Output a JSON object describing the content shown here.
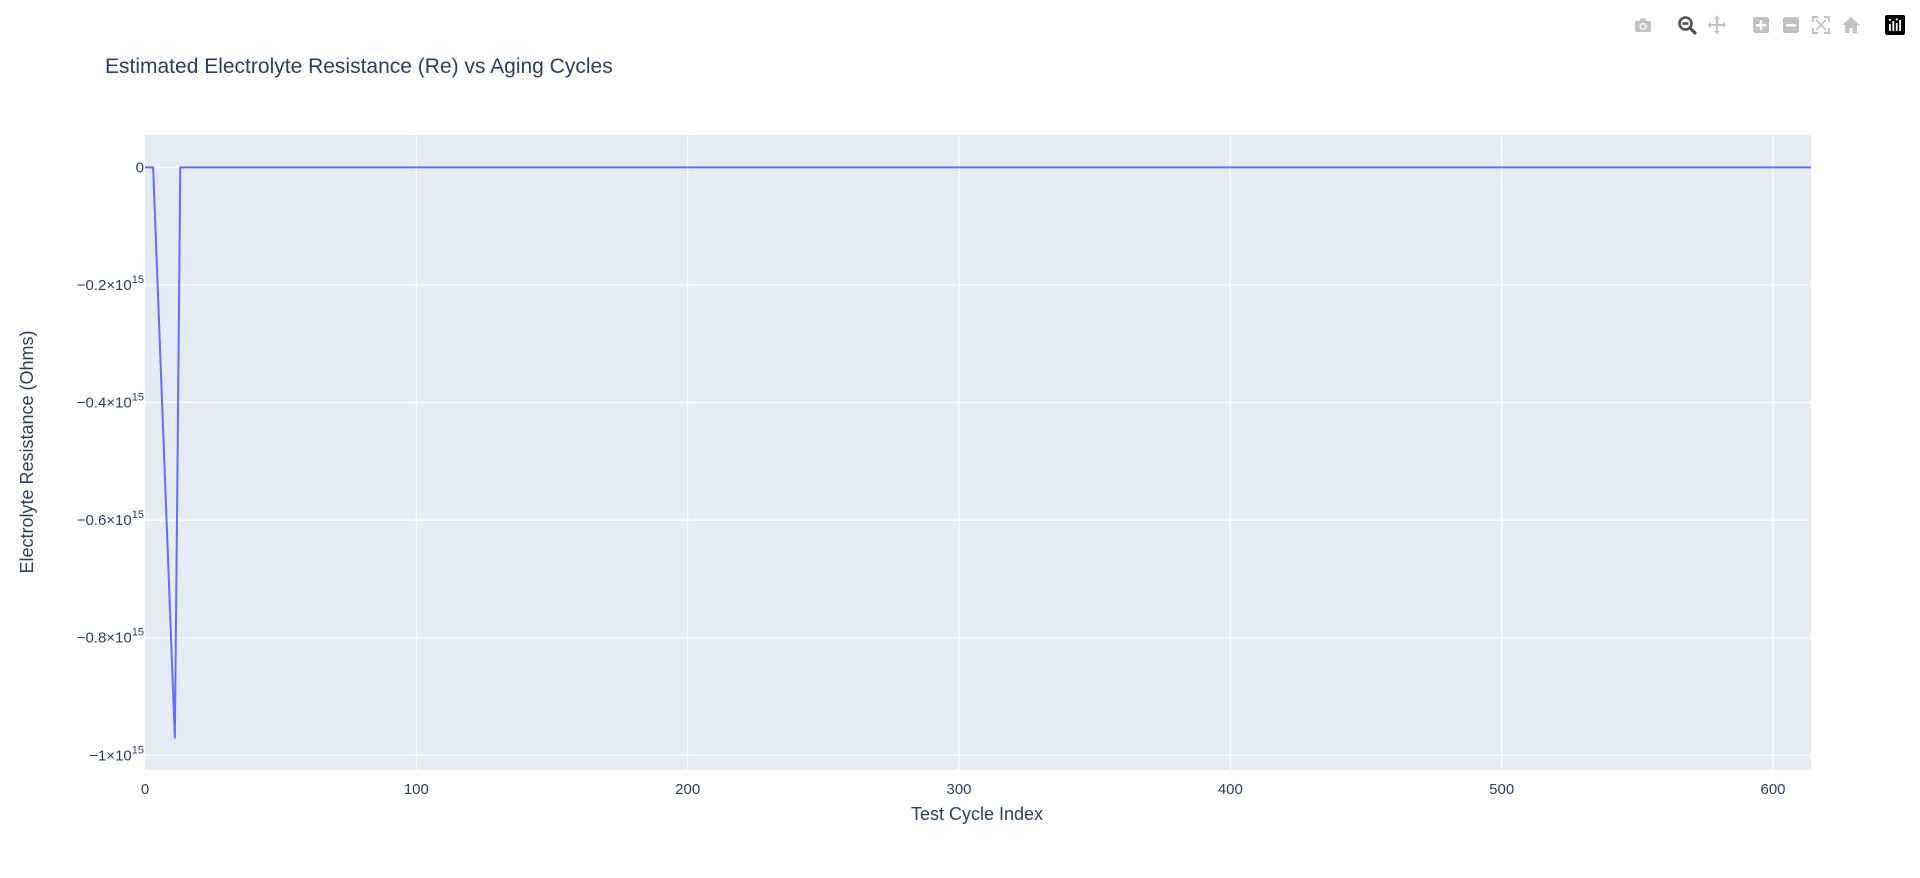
{
  "chart_data": {
    "type": "line",
    "title": "Estimated Electrolyte Resistance (Re) vs Aging Cycles",
    "xlabel": "Test Cycle Index",
    "ylabel": "Electrolyte Resistance (Ohms)",
    "xlim": [
      0,
      614
    ],
    "ylim": [
      -1025000000000000.0,
      55000000000000.0
    ],
    "x_ticks": [
      0,
      100,
      200,
      300,
      400,
      500,
      600
    ],
    "x_tick_labels": [
      "0",
      "100",
      "200",
      "300",
      "400",
      "500",
      "600"
    ],
    "y_ticks": [
      0,
      -200000000000000.0,
      -400000000000000.0,
      -600000000000000.0,
      -800000000000000.0,
      -1000000000000000.0
    ],
    "y_tick_labels": [
      {
        "mantissa": "0",
        "exp": ""
      },
      {
        "mantissa": "−0.2×10",
        "exp": "15"
      },
      {
        "mantissa": "−0.4×10",
        "exp": "15"
      },
      {
        "mantissa": "−0.6×10",
        "exp": "15"
      },
      {
        "mantissa": "−0.8×10",
        "exp": "15"
      },
      {
        "mantissa": "−1×10",
        "exp": "15"
      }
    ],
    "grid": true,
    "series": [
      {
        "color": "#636efa",
        "x": [
          0,
          1,
          2,
          3,
          11,
          12,
          13,
          100,
          200,
          300,
          400,
          500,
          600,
          614
        ],
        "y": [
          0,
          0,
          0,
          0,
          -970000000000000.0,
          -500000000000000.0,
          0,
          0,
          0,
          0,
          0,
          0,
          0,
          0
        ]
      }
    ]
  },
  "colors": {
    "plot_bg": "#e5ecf6",
    "grid": "#ffffff",
    "text": "#2a3f5f",
    "line": "#636efa"
  },
  "modebar": {
    "buttons": [
      {
        "icon": "camera-icon",
        "active": false
      },
      {
        "icon": "zoom-icon",
        "active": true
      },
      {
        "icon": "pan-icon",
        "active": false
      },
      {
        "icon": "zoom-in-icon",
        "active": false
      },
      {
        "icon": "zoom-out-icon",
        "active": false
      },
      {
        "icon": "autoscale-icon",
        "active": false
      },
      {
        "icon": "reset-axes-icon",
        "active": false
      },
      {
        "icon": "plotly-logo-icon",
        "active": false
      }
    ]
  }
}
